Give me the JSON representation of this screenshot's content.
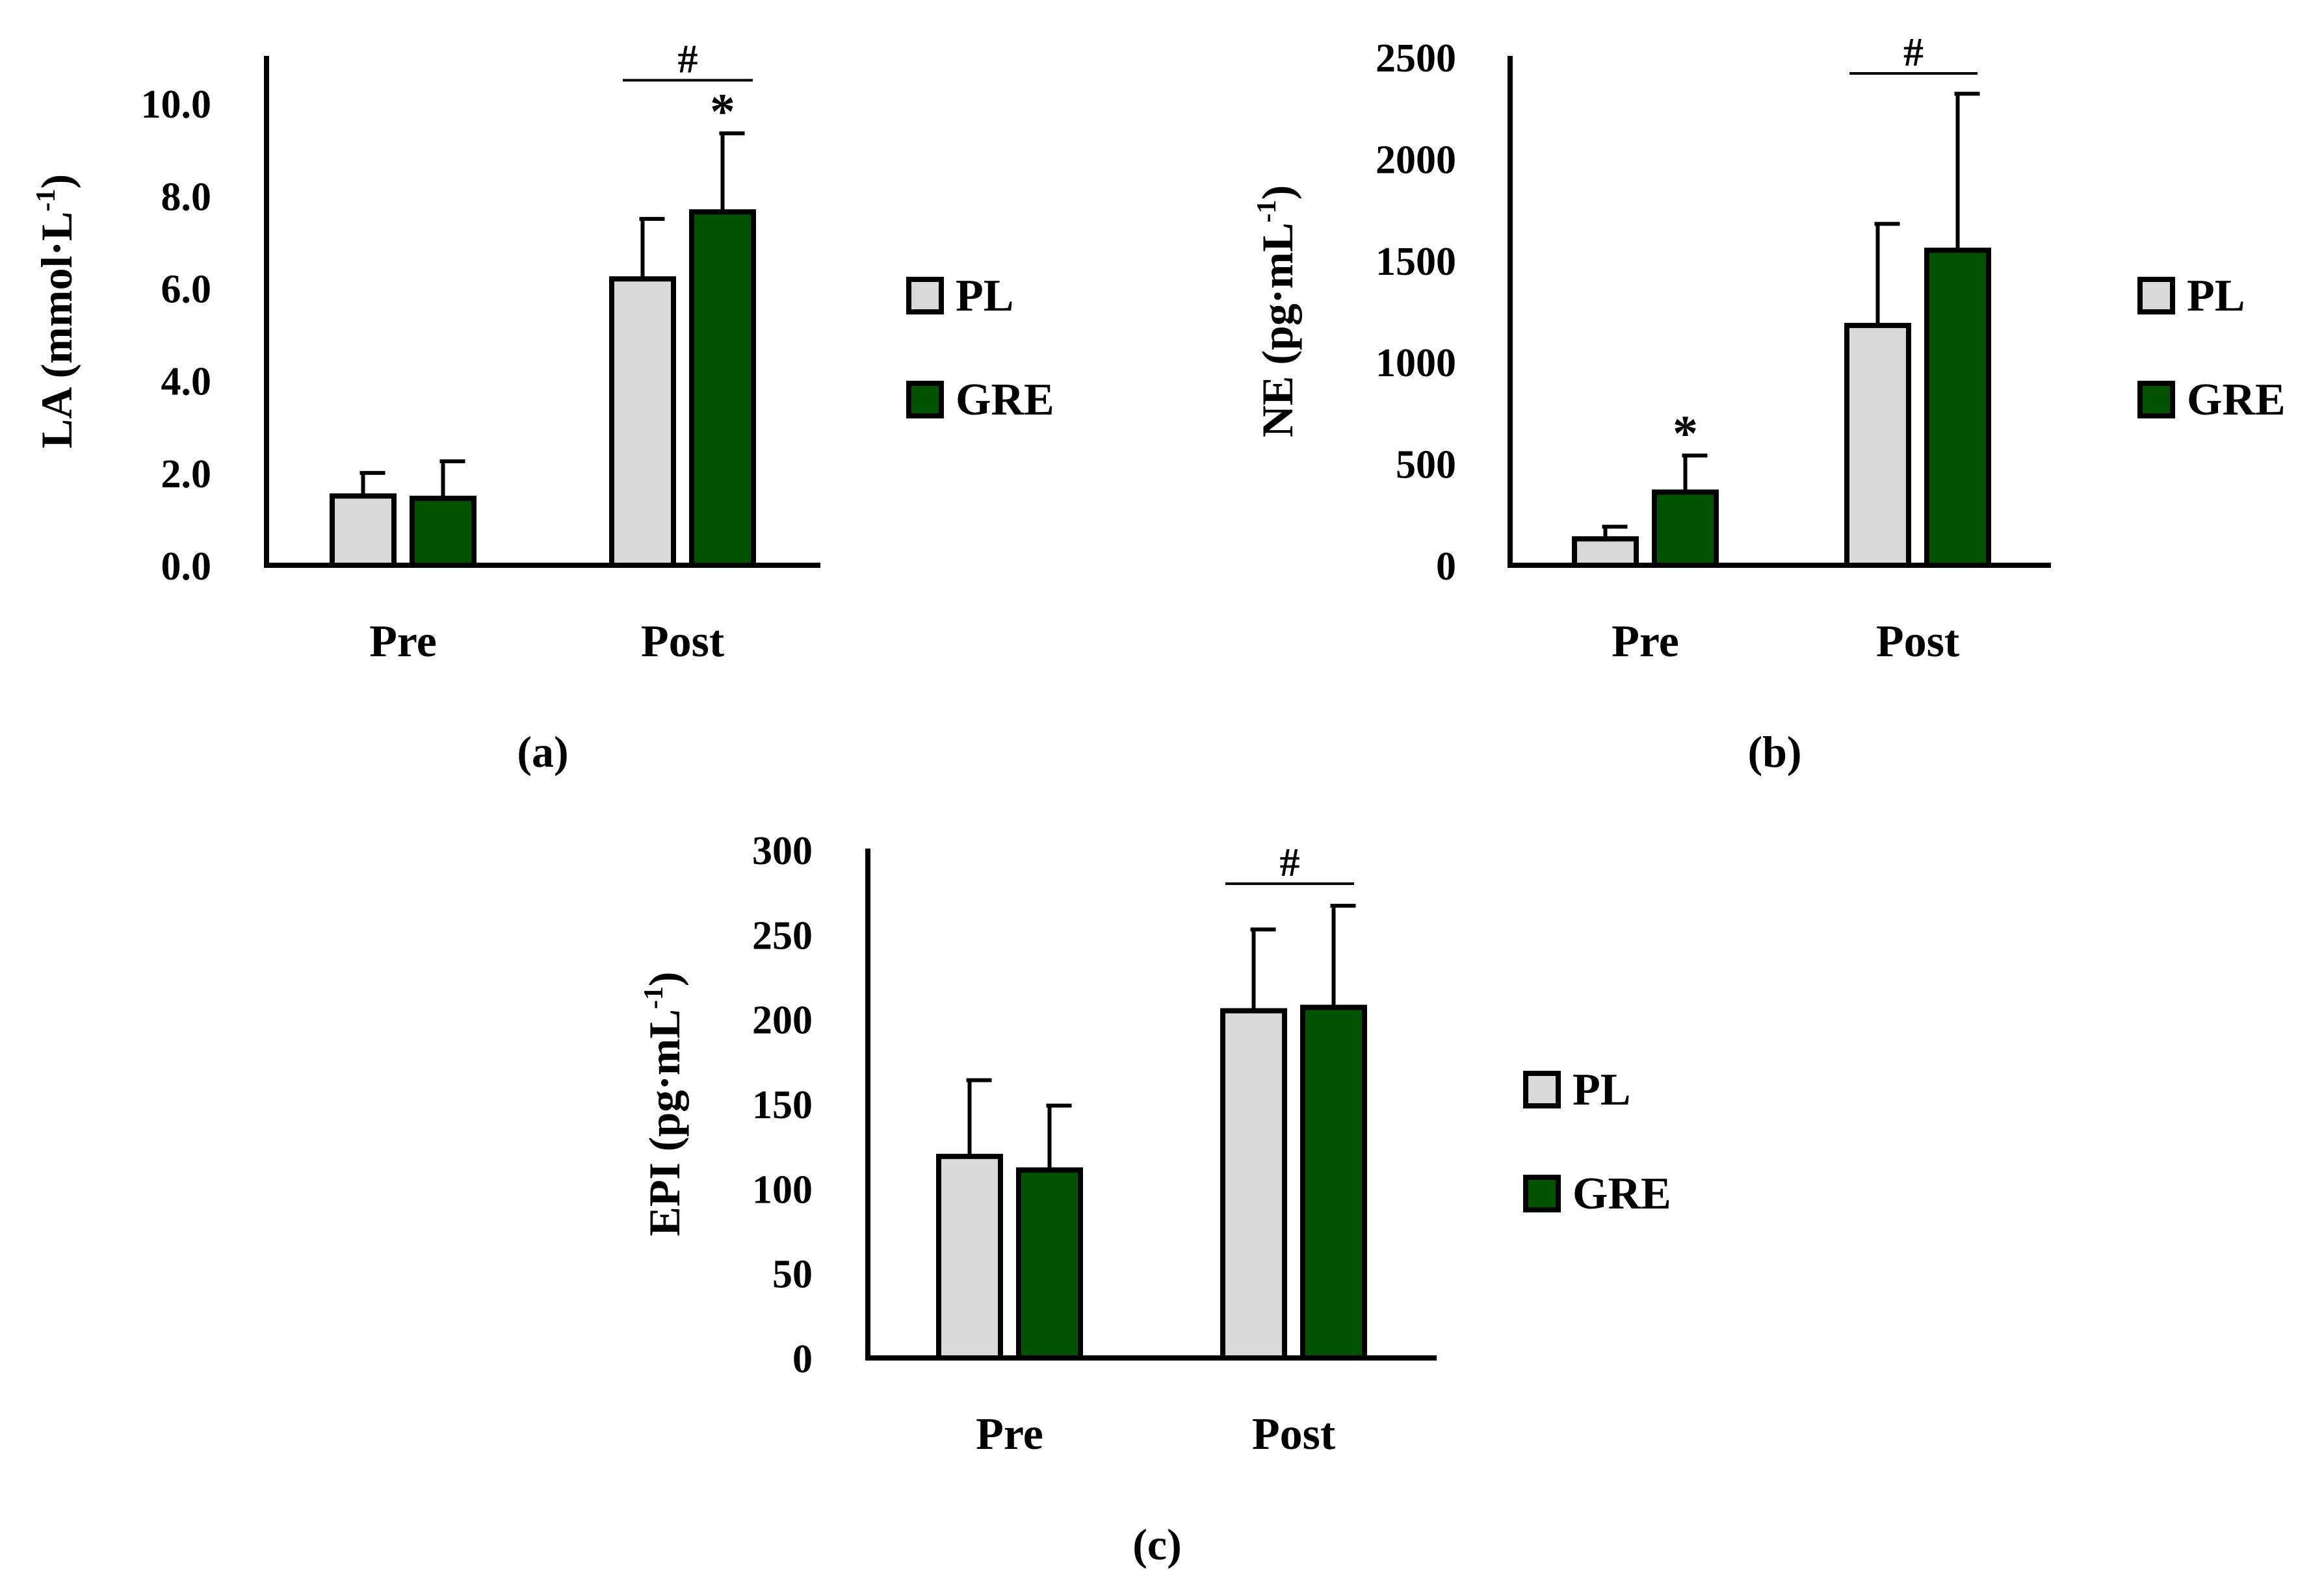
{
  "legend": {
    "pl_label": "PL",
    "gre_label": "GRE"
  },
  "colors": {
    "pl": "#d9d9d9",
    "gre": "#005100",
    "stroke": "#000000"
  },
  "chart_data": [
    {
      "id": "a",
      "type": "bar",
      "caption": "(a)",
      "ylabel_main": "LA (mmol·L",
      "ylabel_sup": "-1",
      "ylabel_end": ")",
      "categories": [
        "Pre",
        "Post"
      ],
      "ylim": [
        0,
        11
      ],
      "ticks": [
        0,
        2,
        4,
        6,
        8,
        10
      ],
      "tick_labels": [
        "0.0",
        "2.0",
        "4.0",
        "6.0",
        "8.0",
        "10.0"
      ],
      "series": [
        {
          "name": "PL",
          "values": [
            1.5,
            6.2
          ],
          "errors": [
            0.5,
            1.3
          ]
        },
        {
          "name": "GRE",
          "values": [
            1.45,
            7.65
          ],
          "errors": [
            0.8,
            1.7
          ]
        }
      ],
      "asterisks": [
        {
          "series": 1,
          "category": 1,
          "text": "*"
        }
      ],
      "hash_label": "#",
      "hash_category": 1,
      "hash_level": 10.5
    },
    {
      "id": "b",
      "type": "bar",
      "caption": "(b)",
      "ylabel_main": "NE (pg·mL",
      "ylabel_sup": "-1",
      "ylabel_end": ")",
      "categories": [
        "Pre",
        "Post"
      ],
      "ylim": [
        0,
        2500
      ],
      "ticks": [
        0,
        500,
        1000,
        1500,
        2000,
        2500
      ],
      "tick_labels": [
        "0",
        "500",
        "1000",
        "1500",
        "2000",
        "2500"
      ],
      "series": [
        {
          "name": "PL",
          "values": [
            130,
            1180
          ],
          "errors": [
            60,
            500
          ]
        },
        {
          "name": "GRE",
          "values": [
            360,
            1550
          ],
          "errors": [
            180,
            770
          ]
        }
      ],
      "asterisks": [
        {
          "series": 1,
          "category": 0,
          "text": "*"
        }
      ],
      "hash_label": "#",
      "hash_category": 1,
      "hash_level": 2420
    },
    {
      "id": "c",
      "type": "bar",
      "caption": "(c)",
      "ylabel_main": "EPI (pg·mL",
      "ylabel_sup": "-1",
      "ylabel_end": ")",
      "categories": [
        "Pre",
        "Post"
      ],
      "ylim": [
        0,
        300
      ],
      "ticks": [
        0,
        50,
        100,
        150,
        200,
        250,
        300
      ],
      "tick_labels": [
        "0",
        "50",
        "100",
        "150",
        "200",
        "250",
        "300"
      ],
      "series": [
        {
          "name": "PL",
          "values": [
            119,
            205
          ],
          "errors": [
            45,
            48
          ]
        },
        {
          "name": "GRE",
          "values": [
            111,
            207
          ],
          "errors": [
            38,
            60
          ]
        }
      ],
      "asterisks": [],
      "hash_label": "#",
      "hash_category": 1,
      "hash_level": 280
    }
  ]
}
